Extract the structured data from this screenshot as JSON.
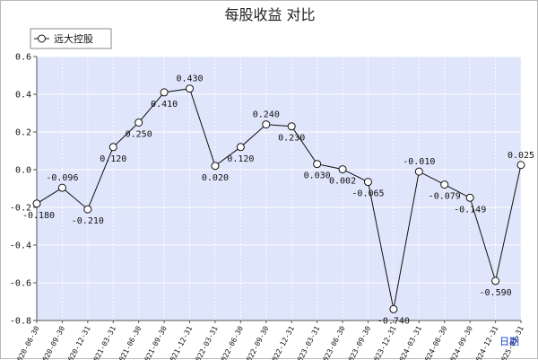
{
  "colors": {
    "plot_bg": "#dfe5fa",
    "grid": "#ffffff",
    "line": "#111111",
    "marker_fill": "#ffffff",
    "axis": "#555555",
    "frame_bg": "#ffffff",
    "x_unit_color": "#1a3fc4"
  },
  "chart_data": {
    "type": "line",
    "title": "每股收益  对比",
    "xlabel": "日期",
    "ylabel": "",
    "ylim": [
      -0.8,
      0.6
    ],
    "y_ticks": [
      "0.6",
      "0.4",
      "0.2",
      "0.0",
      "-0.2",
      "-0.4",
      "-0.6",
      "-0.8"
    ],
    "grid": true,
    "legend_position": "top-left",
    "categories": [
      "2020-06-30",
      "2020-09-30",
      "2020-12-31",
      "2021-03-31",
      "2021-06-30",
      "2021-09-30",
      "2021-12-31",
      "2022-03-31",
      "2022-06-30",
      "2022-09-30",
      "2022-12-31",
      "2023-03-31",
      "2023-06-30",
      "2023-09-30",
      "2023-12-31",
      "2024-03-31",
      "2024-06-30",
      "2024-09-30",
      "2024-12-31",
      "2025-03-31"
    ],
    "series": [
      {
        "name": "远大控股",
        "values": [
          -0.18,
          -0.096,
          -0.21,
          0.12,
          0.25,
          0.41,
          0.43,
          0.02,
          0.12,
          0.24,
          0.23,
          0.03,
          0.002,
          -0.065,
          -0.74,
          -0.01,
          -0.079,
          -0.149,
          -0.59,
          0.025
        ],
        "labels": [
          "-0.180",
          "-0.096",
          "-0.210",
          "0.120",
          "0.250",
          "0.410",
          "0.430",
          "0.020",
          "0.120",
          "0.240",
          "0.230",
          "0.030",
          "0.002",
          "-0.065",
          "-0.740",
          "-0.010",
          "-0.079",
          "-0.149",
          "-0.590",
          "0.025"
        ]
      }
    ]
  }
}
